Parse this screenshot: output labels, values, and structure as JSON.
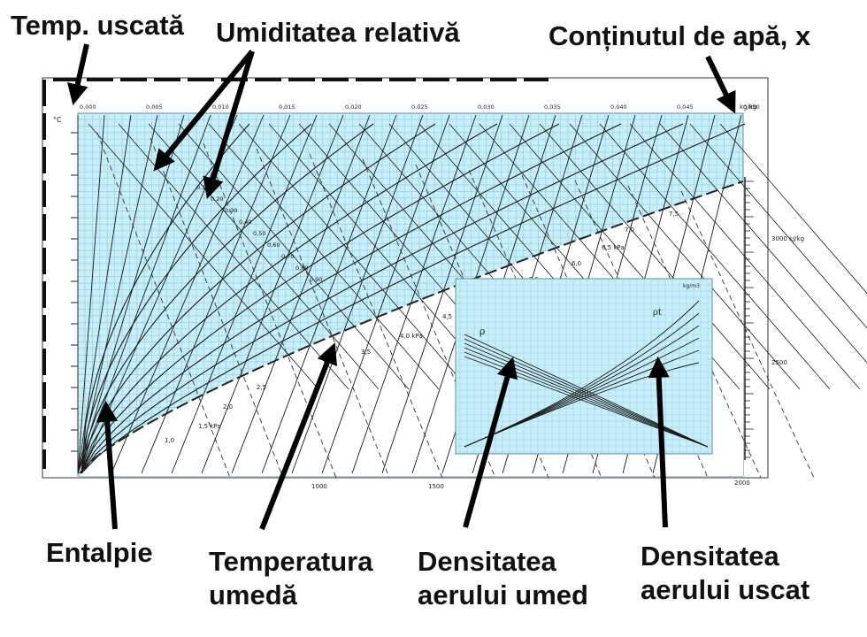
{
  "callouts": {
    "dry_temp": "Temp. uscată",
    "rel_humidity": "Umiditatea relativă",
    "water_content": "Conținutul de apă, x",
    "enthalpy": "Entalpie",
    "wet_temp_1": "Temperatura",
    "wet_temp_2": "umedă",
    "humid_density_1": "Densitatea",
    "humid_density_2": "aerului umed",
    "dry_density_1": "Densitatea",
    "dry_density_2": "aerului uscat"
  },
  "chart": {
    "x_ticks": [
      "0,000",
      "0,005",
      "0,010",
      "0,015",
      "0,020",
      "0,025",
      "0,030",
      "0,035",
      "0,040",
      "0,045",
      "0,050"
    ],
    "x_unit": "kg/kg",
    "t_unit": "°C",
    "rh_labels": [
      "0,10",
      "0,20",
      "0,30",
      "0,40",
      "0,50",
      "0,60",
      "0,70",
      "0,80",
      "0,90"
    ],
    "pressure_labels": [
      "1,0",
      "1,5 kPa",
      "2,0",
      "2,5",
      "3,5",
      "4,0 kPa",
      "4,5",
      "5,0",
      "5,5",
      "6,0",
      "6,5 kPa",
      "7,0",
      "7,5"
    ],
    "enthalpy_labels": [
      "1000",
      "1500",
      "2000",
      "2500",
      "3000 kJ/kg"
    ],
    "inset_rho": "ρ",
    "inset_rhot": "ρt",
    "inset_unit": "kg/m3"
  },
  "colors": {
    "grid": "#8fd3e6",
    "chart_bg": "#c9eef7",
    "lines": "#1a1a1a",
    "arrows": "#000000"
  }
}
